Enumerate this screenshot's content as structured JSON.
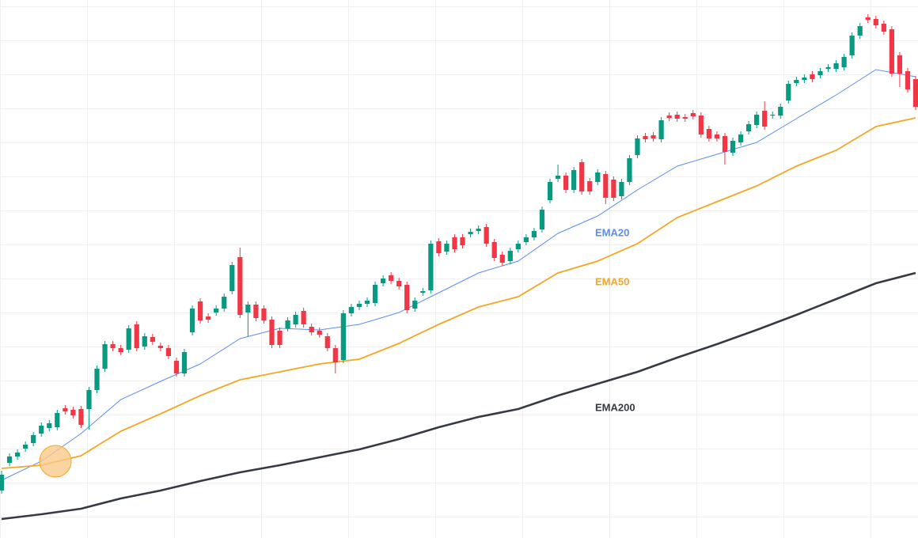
{
  "chart_data": {
    "type": "candlestick",
    "ylim": [
      0,
      680
    ],
    "up_color": "#089981",
    "down_color": "#f23645",
    "open": [
      60,
      95,
      103,
      113,
      120,
      132,
      139,
      140,
      164,
      162,
      163,
      163,
      187,
      214,
      245,
      240,
      238,
      270,
      242,
      254,
      243,
      240,
      224,
      208,
      260,
      299,
      280,
      285,
      290,
      312,
      355,
      285,
      295,
      290,
      276,
      262,
      265,
      270,
      287,
      267,
      262,
      255,
      240,
      225,
      284,
      292,
      296,
      297,
      322,
      332,
      325,
      320,
      290,
      310,
      313,
      375,
      362,
      380,
      380,
      384,
      388,
      393,
      374,
      358,
      350,
      365,
      374,
      380,
      390,
      427,
      454,
      458,
      440,
      475,
      451,
      450,
      460,
      453,
      432,
      450,
      484,
      508,
      509,
      504,
      534,
      535,
      532,
      537,
      534,
      517,
      510,
      508,
      487,
      500,
      514,
      522,
      540,
      534,
      534,
      553,
      575,
      579,
      586,
      585,
      593,
      593,
      595,
      610,
      635,
      658,
      656,
      650,
      643,
      610,
      590,
      580
    ],
    "high": [
      85,
      107,
      112,
      122,
      134,
      146,
      149,
      162,
      168,
      166,
      167,
      191,
      218,
      249,
      249,
      244,
      269,
      274,
      259,
      258,
      247,
      244,
      228,
      239,
      294,
      303,
      284,
      294,
      309,
      349,
      367,
      299,
      299,
      294,
      280,
      266,
      279,
      286,
      291,
      271,
      266,
      259,
      244,
      288,
      296,
      300,
      304,
      324,
      332,
      336,
      329,
      324,
      304,
      316,
      376,
      379,
      376,
      384,
      384,
      391,
      395,
      397,
      378,
      362,
      367,
      376,
      384,
      392,
      419,
      454,
      472,
      462,
      469,
      479,
      455,
      466,
      464,
      457,
      454,
      484,
      509,
      512,
      513,
      532,
      538,
      539,
      536,
      541,
      538,
      521,
      514,
      512,
      506,
      514,
      527,
      539,
      552,
      539,
      549,
      578,
      583,
      586,
      590,
      594,
      599,
      604,
      612,
      639,
      651,
      662,
      660,
      654,
      647,
      614,
      594,
      584
    ],
    "low": [
      56,
      91,
      99,
      109,
      116,
      128,
      135,
      136,
      156,
      151,
      139,
      137,
      183,
      210,
      236,
      231,
      234,
      236,
      238,
      244,
      236,
      226,
      204,
      204,
      256,
      271,
      272,
      281,
      286,
      308,
      278,
      255,
      274,
      271,
      240,
      240,
      261,
      266,
      266,
      256,
      253,
      236,
      208,
      221,
      280,
      288,
      292,
      293,
      318,
      321,
      314,
      284,
      286,
      306,
      309,
      356,
      358,
      361,
      366,
      380,
      384,
      368,
      350,
      344,
      346,
      361,
      370,
      376,
      386,
      423,
      450,
      436,
      436,
      434,
      434,
      446,
      422,
      426,
      428,
      446,
      480,
      500,
      501,
      500,
      527,
      526,
      526,
      529,
      506,
      501,
      501,
      472,
      483,
      496,
      510,
      518,
      516,
      530,
      530,
      549,
      571,
      575,
      576,
      581,
      589,
      589,
      591,
      606,
      631,
      651,
      644,
      636,
      583,
      570,
      563,
      541
    ],
    "close": [
      80,
      103,
      108,
      118,
      130,
      142,
      145,
      158,
      160,
      155,
      143,
      187,
      214,
      245,
      240,
      235,
      265,
      240,
      255,
      248,
      240,
      230,
      208,
      235,
      290,
      275,
      276,
      290,
      305,
      345,
      282,
      295,
      278,
      275,
      244,
      244,
      275,
      282,
      270,
      260,
      257,
      240,
      222,
      284,
      292,
      296,
      300,
      320,
      328,
      325,
      318,
      288,
      300,
      312,
      372,
      360,
      372,
      365,
      370,
      387,
      391,
      372,
      354,
      348,
      363,
      372,
      380,
      388,
      415,
      450,
      458,
      440,
      465,
      438,
      438,
      462,
      430,
      430,
      450,
      480,
      505,
      504,
      505,
      528,
      531,
      530,
      530,
      533,
      510,
      505,
      505,
      488,
      502,
      510,
      523,
      535,
      520,
      535,
      545,
      574,
      579,
      582,
      580,
      590,
      595,
      600,
      608,
      635,
      647,
      655,
      648,
      640,
      587,
      587,
      567,
      545
    ],
    "ema_x": [
      0,
      5,
      10,
      15,
      20,
      25,
      30,
      35,
      40,
      45,
      50,
      55,
      60,
      65,
      70,
      75,
      80,
      85,
      90,
      95,
      100,
      105,
      110,
      115
    ],
    "series": [
      {
        "name": "EMA20",
        "color": "#5b8def",
        "values": [
          73,
          97,
          132,
          175,
          198,
          220,
          252,
          265,
          263,
          270,
          285,
          310,
          335,
          350,
          385,
          407,
          440,
          470,
          485,
          500,
          530,
          560,
          592,
          583
        ]
      },
      {
        "name": "EMA50",
        "color": "#f5a623",
        "values": [
          88,
          92,
          104,
          135,
          157,
          180,
          200,
          210,
          220,
          226,
          246,
          270,
          292,
          305,
          335,
          350,
          372,
          405,
          425,
          445,
          470,
          490,
          520,
          531
        ]
      },
      {
        "name": "EMA200",
        "color": "#363a45",
        "values": [
          24,
          30,
          37,
          50,
          60,
          72,
          83,
          92,
          102,
          112,
          125,
          140,
          153,
          163,
          180,
          195,
          210,
          228,
          245,
          263,
          282,
          302,
          322,
          335
        ]
      }
    ]
  }
}
